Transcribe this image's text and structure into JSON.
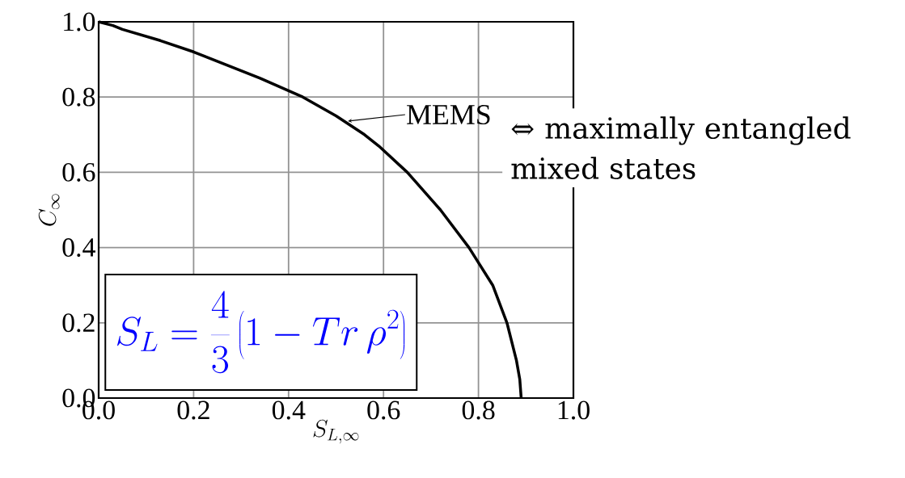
{
  "chart_data": {
    "type": "line",
    "xlabel": "S_{L,\\infty}",
    "ylabel": "C_\\infty",
    "xlim": [
      0,
      1
    ],
    "ylim": [
      0,
      1
    ],
    "xticks": [
      {
        "value": 0,
        "label": "0.0"
      },
      {
        "value": 0.2,
        "label": "0.2"
      },
      {
        "value": 0.4,
        "label": "0.4"
      },
      {
        "value": 0.6,
        "label": "0.6"
      },
      {
        "value": 0.8,
        "label": "0.8"
      },
      {
        "value": 1,
        "label": "1.0"
      }
    ],
    "yticks": [
      {
        "value": 0,
        "label": "0.0"
      },
      {
        "value": 0.2,
        "label": "0.2"
      },
      {
        "value": 0.4,
        "label": "0.4"
      },
      {
        "value": 0.6,
        "label": "0.6"
      },
      {
        "value": 0.8,
        "label": "0.8"
      },
      {
        "value": 1,
        "label": "1.0"
      }
    ],
    "grid": true,
    "marker": "none",
    "line_style": "solid",
    "series": [
      {
        "color": "#000000",
        "x": [
          0,
          0.03,
          0.05,
          0.13,
          0.2,
          0.24,
          0.34,
          0.43,
          0.5,
          0.56,
          0.59,
          0.65,
          0.72,
          0.78,
          0.83,
          0.86,
          0.88,
          0.887,
          0.89
        ],
        "values": [
          1,
          0.99,
          0.98,
          0.95,
          0.92,
          0.9,
          0.85,
          0.8,
          0.75,
          0.7,
          0.67,
          0.6,
          0.5,
          0.4,
          0.3,
          0.2,
          0.1,
          0.05,
          0
        ]
      }
    ],
    "annotations": [
      {
        "text": "MEMS",
        "x": 0.525,
        "y": 0.736
      },
      "⇔ maximally entangled mixed states",
      "S_L=\\frac{4}{3}\\left(1-Tr\\,\\rho^2\\right)"
    ]
  }
}
